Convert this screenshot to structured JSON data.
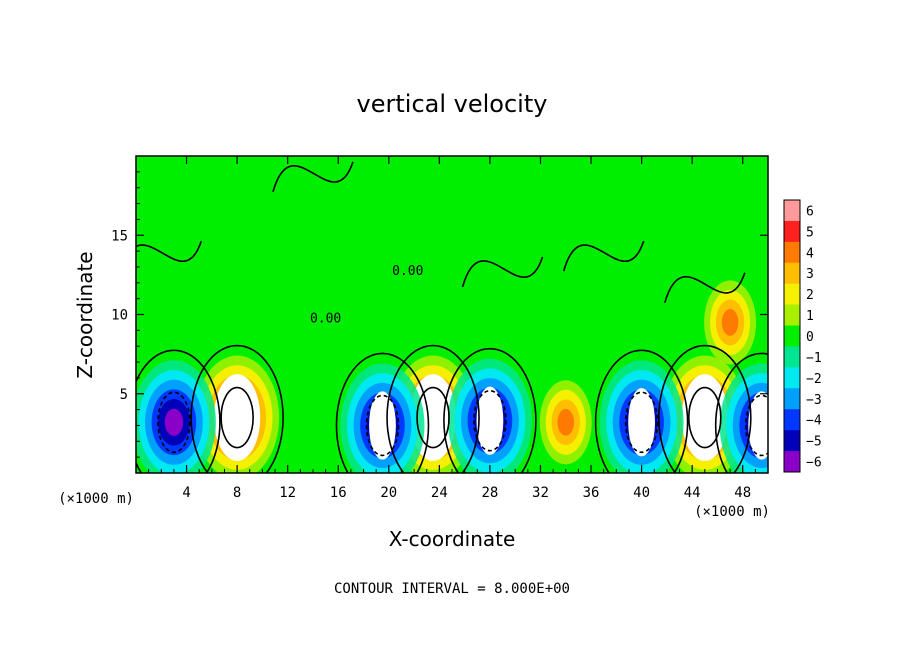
{
  "chart_data": {
    "type": "heatmap",
    "title": "vertical velocity",
    "xlabel": "X-coordinate",
    "ylabel": "Z-coordinate",
    "x_unit_left": "(×1000 m)",
    "x_unit_right": "(×1000 m)",
    "footer": "CONTOUR INTERVAL = 8.000E+00",
    "xlim": [
      0,
      50
    ],
    "ylim": [
      0,
      20
    ],
    "x_ticks": [
      4,
      8,
      12,
      16,
      20,
      24,
      28,
      32,
      36,
      40,
      44,
      48
    ],
    "x_tick_labels": [
      "4",
      "8",
      "12",
      "16",
      "20",
      "24",
      "28",
      "32",
      "36",
      "40",
      "44",
      "48"
    ],
    "y_ticks": [
      5,
      10,
      15
    ],
    "y_tick_labels": [
      "5",
      "10",
      "15"
    ],
    "contour_label": "0.00",
    "colorbar": {
      "levels": [
        6,
        5,
        4,
        3,
        2,
        1,
        0,
        -1,
        -2,
        -3,
        -4,
        -5,
        -6
      ],
      "labels": [
        "6",
        "5",
        "4",
        "3",
        "2",
        "1",
        "0",
        "−1",
        "−2",
        "−3",
        "−4",
        "−5",
        "−6"
      ],
      "colors": [
        "#ff9a9a",
        "#ff2020",
        "#ff7a00",
        "#ffbe00",
        "#f5f000",
        "#a8f000",
        "#00ee00",
        "#00e690",
        "#00e8f0",
        "#00a0ff",
        "#0038ff",
        "#0000b8",
        "#8a00c8"
      ]
    },
    "features": [
      {
        "kind": "updraft",
        "x": 8,
        "z": 3.5,
        "peak": 6
      },
      {
        "kind": "updraft",
        "x": 23.5,
        "z": 3.5,
        "peak": 6
      },
      {
        "kind": "updraft",
        "x": 45,
        "z": 3.5,
        "peak": 6
      },
      {
        "kind": "updraft",
        "x": 34,
        "z": 3.2,
        "peak": 4
      },
      {
        "kind": "updraft",
        "x": 47,
        "z": 9.5,
        "peak": 4
      },
      {
        "kind": "downdraft",
        "x": 3,
        "z": 3.2,
        "peak": -6
      },
      {
        "kind": "downdraft",
        "x": 19.5,
        "z": 3,
        "peak": -6
      },
      {
        "kind": "downdraft",
        "x": 28,
        "z": 3.3,
        "peak": -6
      },
      {
        "kind": "downdraft",
        "x": 40,
        "z": 3.2,
        "peak": -6
      },
      {
        "kind": "downdraft",
        "x": 49.5,
        "z": 3,
        "peak": -6
      }
    ]
  }
}
